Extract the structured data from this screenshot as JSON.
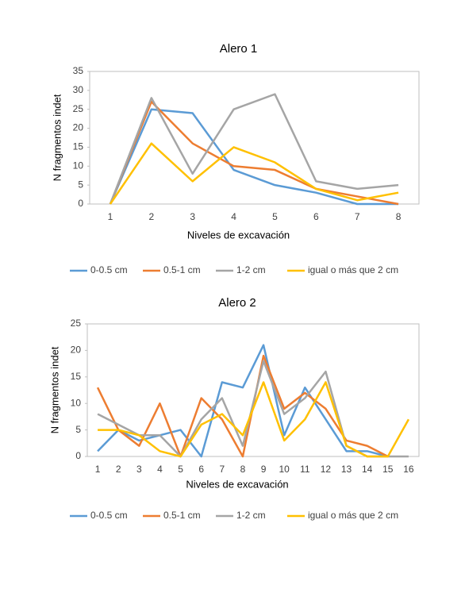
{
  "chart_data": [
    {
      "type": "line",
      "title": "Alero 1",
      "x_label": "Niveles de excavación",
      "y_label": "N fragmentos indet",
      "categories": [
        1,
        2,
        3,
        4,
        5,
        6,
        7,
        8
      ],
      "ylim": [
        0,
        35
      ],
      "yticks": [
        0,
        5,
        10,
        15,
        20,
        25,
        30,
        35
      ],
      "series": [
        {
          "name": "0-0.5 cm",
          "color": "#5b9bd5",
          "values": [
            0,
            25,
            24,
            9,
            5,
            3,
            0,
            0
          ]
        },
        {
          "name": "0.5-1 cm",
          "color": "#ed7d31",
          "values": [
            0,
            27,
            16,
            10,
            9,
            4,
            2,
            0
          ]
        },
        {
          "name": "1-2 cm",
          "color": "#a5a5a5",
          "values": [
            0,
            28,
            8,
            25,
            29,
            6,
            4,
            5
          ]
        },
        {
          "name": "igual o más que 2 cm",
          "color": "#ffc000",
          "values": [
            0,
            16,
            6,
            15,
            11,
            4,
            1,
            3
          ]
        }
      ]
    },
    {
      "type": "line",
      "title": "Alero 2",
      "x_label": "Niveles de excavación",
      "y_label": "N fragmentos indet",
      "categories": [
        1,
        2,
        3,
        4,
        5,
        6,
        7,
        8,
        9,
        10,
        11,
        12,
        13,
        14,
        15,
        16
      ],
      "ylim": [
        0,
        25
      ],
      "yticks": [
        0,
        5,
        10,
        15,
        20,
        25
      ],
      "series": [
        {
          "name": "0-0.5 cm",
          "color": "#5b9bd5",
          "values": [
            1,
            5,
            3,
            4,
            5,
            0,
            14,
            13,
            21,
            4,
            13,
            7,
            1,
            1,
            0,
            null
          ]
        },
        {
          "name": "0.5-1 cm",
          "color": "#ed7d31",
          "values": [
            13,
            5,
            2,
            10,
            0,
            11,
            7,
            0,
            19,
            9,
            12,
            9,
            3,
            2,
            0,
            null
          ]
        },
        {
          "name": "1-2 cm",
          "color": "#a5a5a5",
          "values": [
            8,
            6,
            4,
            4,
            0,
            7,
            11,
            2,
            18,
            8,
            11,
            16,
            2,
            0,
            0,
            0
          ]
        },
        {
          "name": "igual o más que 2 cm",
          "color": "#ffc000",
          "values": [
            5,
            5,
            4,
            1,
            0,
            6,
            8,
            4,
            14,
            3,
            7,
            14,
            2,
            0,
            0,
            7
          ]
        }
      ]
    }
  ]
}
